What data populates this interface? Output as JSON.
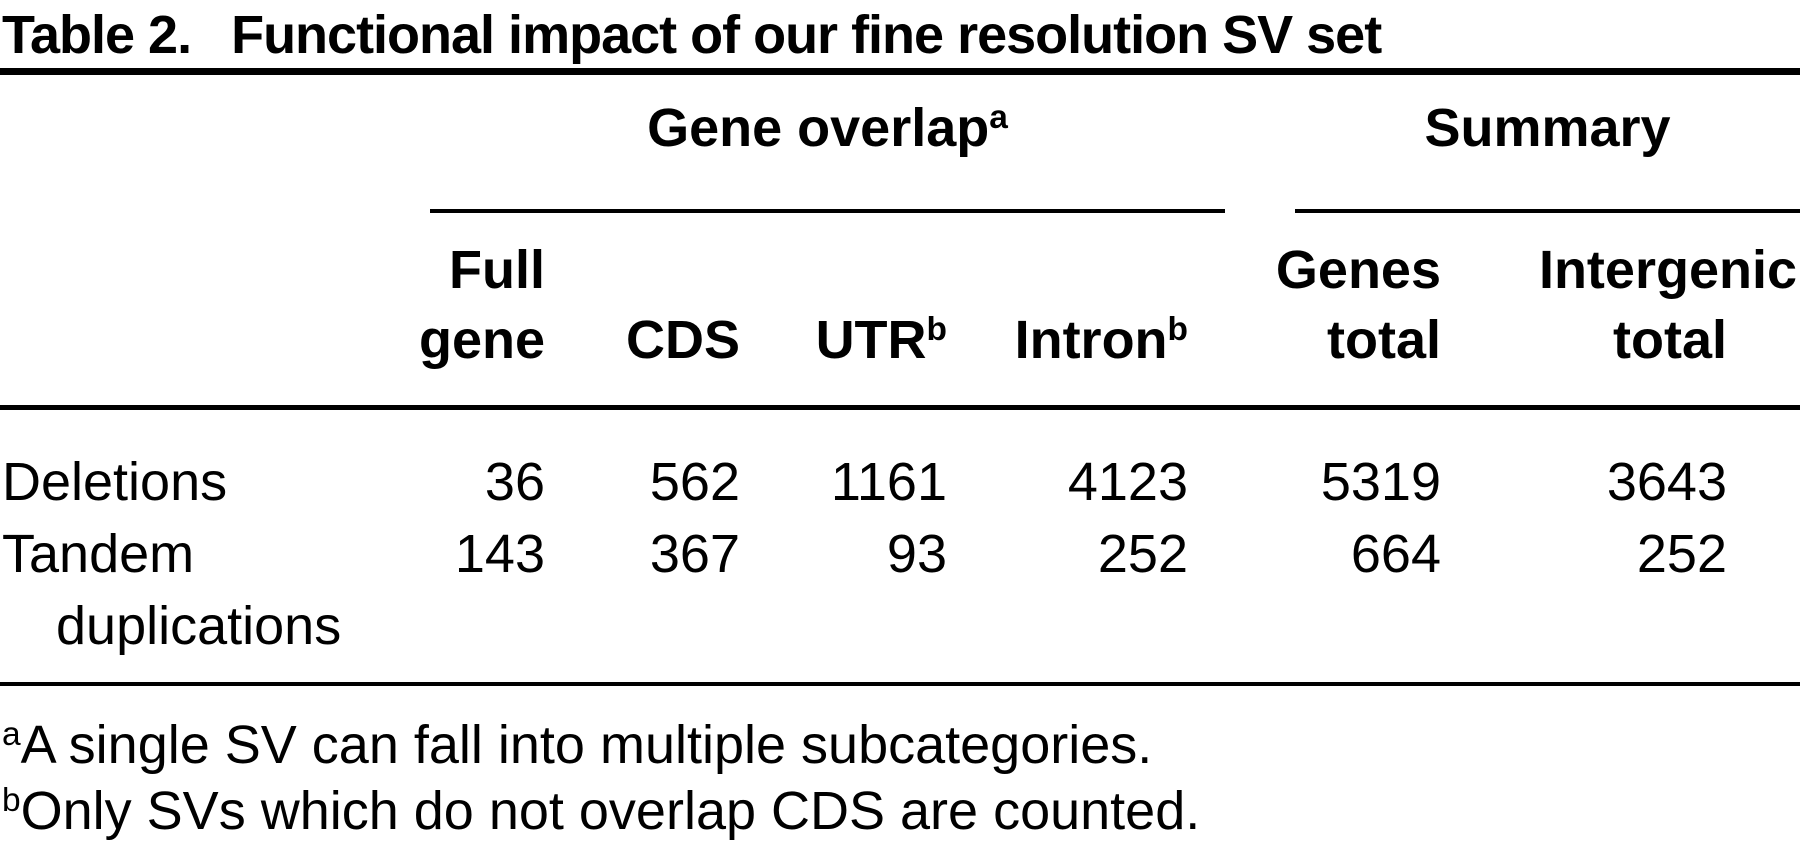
{
  "table": {
    "title_label": "Table 2.",
    "title_text": "Functional impact of our fine resolution SV set",
    "groups": [
      {
        "label": "Gene overlap",
        "sup": "a"
      },
      {
        "label": "Summary",
        "sup": ""
      }
    ],
    "columns": [
      {
        "line1": "Full",
        "line2": "gene",
        "sup": ""
      },
      {
        "line1": "",
        "line2": "CDS",
        "sup": ""
      },
      {
        "line1": "",
        "line2": "UTR",
        "sup": "b"
      },
      {
        "line1": "",
        "line2": "Intron",
        "sup": "b"
      },
      {
        "line1": "Genes",
        "line2": "total",
        "sup": ""
      },
      {
        "line1": "Intergenic",
        "line2": "total",
        "sup": ""
      }
    ],
    "rows": [
      {
        "label": "Deletions",
        "label2": "",
        "values": [
          "36",
          "562",
          "1161",
          "4123",
          "5319",
          "3643"
        ]
      },
      {
        "label": "Tandem",
        "label2": "duplications",
        "values": [
          "143",
          "367",
          "93",
          "252",
          "664",
          "252"
        ]
      }
    ],
    "footnotes": [
      {
        "sup": "a",
        "text": "A single SV can fall into multiple subcategories."
      },
      {
        "sup": "b",
        "text": "Only SVs which do not overlap CDS are counted."
      }
    ],
    "colors": {
      "text": "#000000",
      "background": "#ffffff"
    }
  }
}
